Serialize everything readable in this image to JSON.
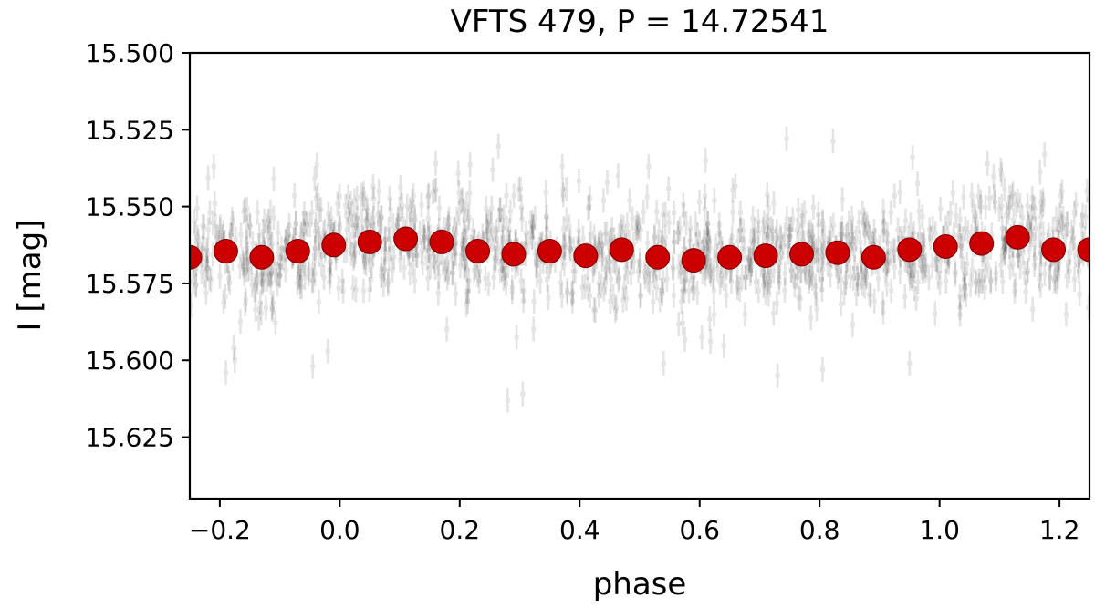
{
  "chart_data": {
    "type": "scatter",
    "title": "VFTS 479, P = 14.72541",
    "xlabel": "phase",
    "ylabel": "I [mag]",
    "xlim": [
      -0.25,
      1.25
    ],
    "ylim": [
      15.645,
      15.5
    ],
    "y_inverted": true,
    "xticks": [
      -0.2,
      0.0,
      0.2,
      0.4,
      0.6,
      0.8,
      1.0,
      1.2
    ],
    "xtick_labels": [
      "−0.2",
      "0.0",
      "0.2",
      "0.4",
      "0.6",
      "0.8",
      "1.0",
      "1.2"
    ],
    "yticks": [
      15.5,
      15.525,
      15.55,
      15.575,
      15.6,
      15.625
    ],
    "ytick_labels": [
      "15.500",
      "15.525",
      "15.550",
      "15.575",
      "15.600",
      "15.625"
    ],
    "grid": false,
    "series": [
      {
        "name": "observations",
        "style": "errorbar",
        "color": "#000000",
        "alpha": 0.1,
        "count": 1400,
        "phase_span": [
          -0.25,
          1.25
        ],
        "mean_mag": 15.564,
        "scatter_sigma_mag": 0.009,
        "error_mag": 0.004,
        "outliers": [
          {
            "x": -0.19,
            "y": 15.604
          },
          {
            "x": -0.175,
            "y": 15.6
          },
          {
            "x": -0.02,
            "y": 15.597
          },
          {
            "x": -0.045,
            "y": 15.602
          },
          {
            "x": 0.28,
            "y": 15.613
          },
          {
            "x": 0.305,
            "y": 15.611
          },
          {
            "x": 0.54,
            "y": 15.601
          },
          {
            "x": 0.73,
            "y": 15.605
          },
          {
            "x": 0.805,
            "y": 15.603
          },
          {
            "x": 0.95,
            "y": 15.601
          },
          {
            "x": -0.21,
            "y": 15.537
          },
          {
            "x": -0.11,
            "y": 15.541
          },
          {
            "x": 0.16,
            "y": 15.536
          },
          {
            "x": 0.255,
            "y": 15.538
          },
          {
            "x": 0.515,
            "y": 15.537
          },
          {
            "x": 0.61,
            "y": 15.535
          },
          {
            "x": 0.955,
            "y": 15.534
          },
          {
            "x": 1.08,
            "y": 15.536
          },
          {
            "x": 1.175,
            "y": 15.533
          }
        ]
      },
      {
        "name": "binned mean",
        "style": "markers",
        "color": "#cc0000",
        "x": [
          -0.25,
          -0.19,
          -0.13,
          -0.07,
          -0.01,
          0.05,
          0.11,
          0.17,
          0.23,
          0.29,
          0.35,
          0.41,
          0.47,
          0.53,
          0.59,
          0.65,
          0.71,
          0.77,
          0.83,
          0.89,
          0.95,
          1.01,
          1.07,
          1.13,
          1.19,
          1.25
        ],
        "y": [
          15.5665,
          15.5645,
          15.5665,
          15.5645,
          15.5625,
          15.5615,
          15.5605,
          15.5615,
          15.5645,
          15.5655,
          15.5645,
          15.566,
          15.564,
          15.5665,
          15.5675,
          15.5665,
          15.566,
          15.5655,
          15.565,
          15.5665,
          15.564,
          15.563,
          15.562,
          15.56,
          15.564,
          15.564
        ]
      }
    ]
  }
}
